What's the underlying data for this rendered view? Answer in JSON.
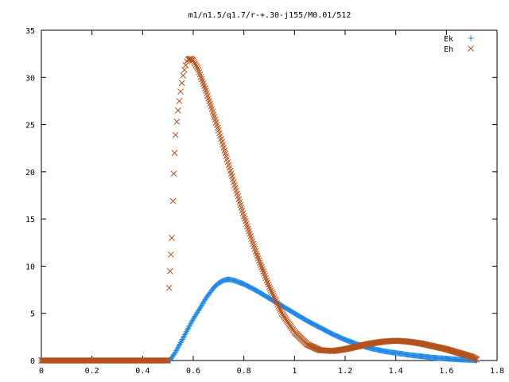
{
  "chart_data": {
    "type": "scatter",
    "title": "m1/n1.5/q1.7/r-+.30-j155/M0.01/512",
    "xlabel": "",
    "ylabel": "",
    "xlim": [
      0,
      1.8
    ],
    "ylim": [
      0,
      35
    ],
    "x_ticks": [
      "0",
      "0.2",
      "0.4",
      "0.6",
      "0.8",
      "1",
      "1.2",
      "1.4",
      "1.6",
      "1.8"
    ],
    "y_ticks": [
      "0",
      "5",
      "10",
      "15",
      "20",
      "25",
      "30",
      "35"
    ],
    "grid": false,
    "legend_position": "top-right",
    "series": [
      {
        "name": "Ek",
        "marker": "plus",
        "color": "#1f88e5",
        "points": [
          [
            0.0,
            0.0
          ],
          [
            0.1,
            0.0
          ],
          [
            0.2,
            0.0
          ],
          [
            0.3,
            0.0
          ],
          [
            0.4,
            0.0
          ],
          [
            0.5,
            0.0
          ],
          [
            0.51,
            0.1
          ],
          [
            0.53,
            0.9
          ],
          [
            0.55,
            1.9
          ],
          [
            0.57,
            2.9
          ],
          [
            0.6,
            4.4
          ],
          [
            0.63,
            5.7
          ],
          [
            0.65,
            6.6
          ],
          [
            0.68,
            7.7
          ],
          [
            0.7,
            8.2
          ],
          [
            0.72,
            8.5
          ],
          [
            0.74,
            8.6
          ],
          [
            0.76,
            8.5
          ],
          [
            0.78,
            8.3
          ],
          [
            0.8,
            8.1
          ],
          [
            0.85,
            7.4
          ],
          [
            0.9,
            6.6
          ],
          [
            0.95,
            5.8
          ],
          [
            1.0,
            5.0
          ],
          [
            1.05,
            4.2
          ],
          [
            1.1,
            3.5
          ],
          [
            1.15,
            2.8
          ],
          [
            1.2,
            2.2
          ],
          [
            1.25,
            1.7
          ],
          [
            1.3,
            1.3
          ],
          [
            1.35,
            1.0
          ],
          [
            1.4,
            0.8
          ],
          [
            1.45,
            0.6
          ],
          [
            1.5,
            0.45
          ],
          [
            1.55,
            0.3
          ],
          [
            1.6,
            0.2
          ],
          [
            1.65,
            0.1
          ],
          [
            1.7,
            0.05
          ],
          [
            1.72,
            0.0
          ]
        ]
      },
      {
        "name": "Eh",
        "marker": "cross",
        "color": "#b5521b",
        "points": [
          [
            0.0,
            0.0
          ],
          [
            0.1,
            0.0
          ],
          [
            0.2,
            0.0
          ],
          [
            0.3,
            0.0
          ],
          [
            0.4,
            0.0
          ],
          [
            0.5,
            0.0
          ],
          [
            0.505,
            7.7
          ],
          [
            0.515,
            13.0
          ],
          [
            0.52,
            16.9
          ],
          [
            0.523,
            19.8
          ],
          [
            0.526,
            22.0
          ],
          [
            0.53,
            23.9
          ],
          [
            0.535,
            25.3
          ],
          [
            0.54,
            26.5
          ],
          [
            0.545,
            27.5
          ],
          [
            0.55,
            28.5
          ],
          [
            0.555,
            29.4
          ],
          [
            0.56,
            30.2
          ],
          [
            0.565,
            30.8
          ],
          [
            0.57,
            31.3
          ],
          [
            0.575,
            31.7
          ],
          [
            0.58,
            31.9
          ],
          [
            0.59,
            32.0
          ],
          [
            0.6,
            31.8
          ],
          [
            0.62,
            30.8
          ],
          [
            0.65,
            28.6
          ],
          [
            0.7,
            24.4
          ],
          [
            0.75,
            19.8
          ],
          [
            0.8,
            15.3
          ],
          [
            0.85,
            11.3
          ],
          [
            0.9,
            7.8
          ],
          [
            0.95,
            5.0
          ],
          [
            1.0,
            3.0
          ],
          [
            1.05,
            1.7
          ],
          [
            1.1,
            1.1
          ],
          [
            1.15,
            1.0
          ],
          [
            1.2,
            1.2
          ],
          [
            1.25,
            1.5
          ],
          [
            1.3,
            1.8
          ],
          [
            1.35,
            2.0
          ],
          [
            1.4,
            2.1
          ],
          [
            1.45,
            2.0
          ],
          [
            1.5,
            1.8
          ],
          [
            1.55,
            1.5
          ],
          [
            1.6,
            1.2
          ],
          [
            1.65,
            0.8
          ],
          [
            1.7,
            0.4
          ],
          [
            1.72,
            0.1
          ]
        ]
      }
    ]
  }
}
